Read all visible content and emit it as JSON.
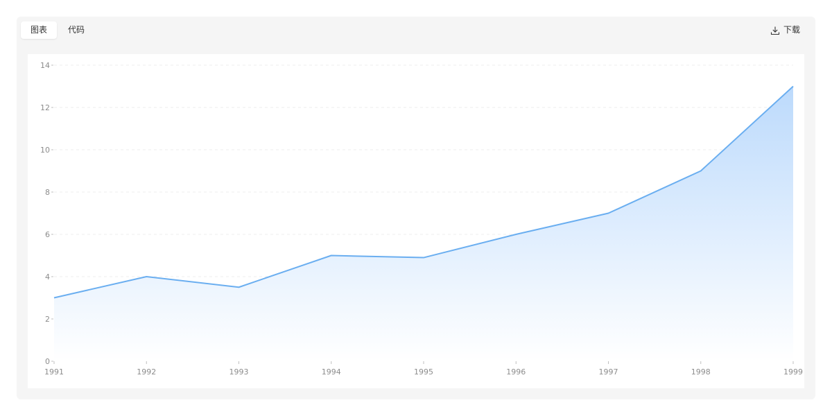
{
  "toolbar": {
    "tabs": [
      {
        "label": "图表",
        "active": true
      },
      {
        "label": "代码",
        "active": false
      }
    ],
    "download_label": "下载"
  },
  "colors": {
    "line": "#6aaef0",
    "area_top": "#bcdafc",
    "area_bottom": "#ffffff",
    "grid": "#eeeeee",
    "axis_text": "#8c8c8c"
  },
  "chart_data": {
    "type": "area",
    "x": [
      "1991",
      "1992",
      "1993",
      "1994",
      "1995",
      "1996",
      "1997",
      "1998",
      "1999"
    ],
    "series": [
      {
        "values": [
          3,
          4,
          3.5,
          5,
          4.9,
          6,
          7,
          9,
          13
        ]
      }
    ],
    "yticks": [
      "0",
      "2",
      "4",
      "6",
      "8",
      "10",
      "12",
      "14"
    ],
    "ylim": [
      0,
      14
    ],
    "title": "",
    "xlabel": "",
    "ylabel": "",
    "grid": true,
    "legend": "none"
  }
}
